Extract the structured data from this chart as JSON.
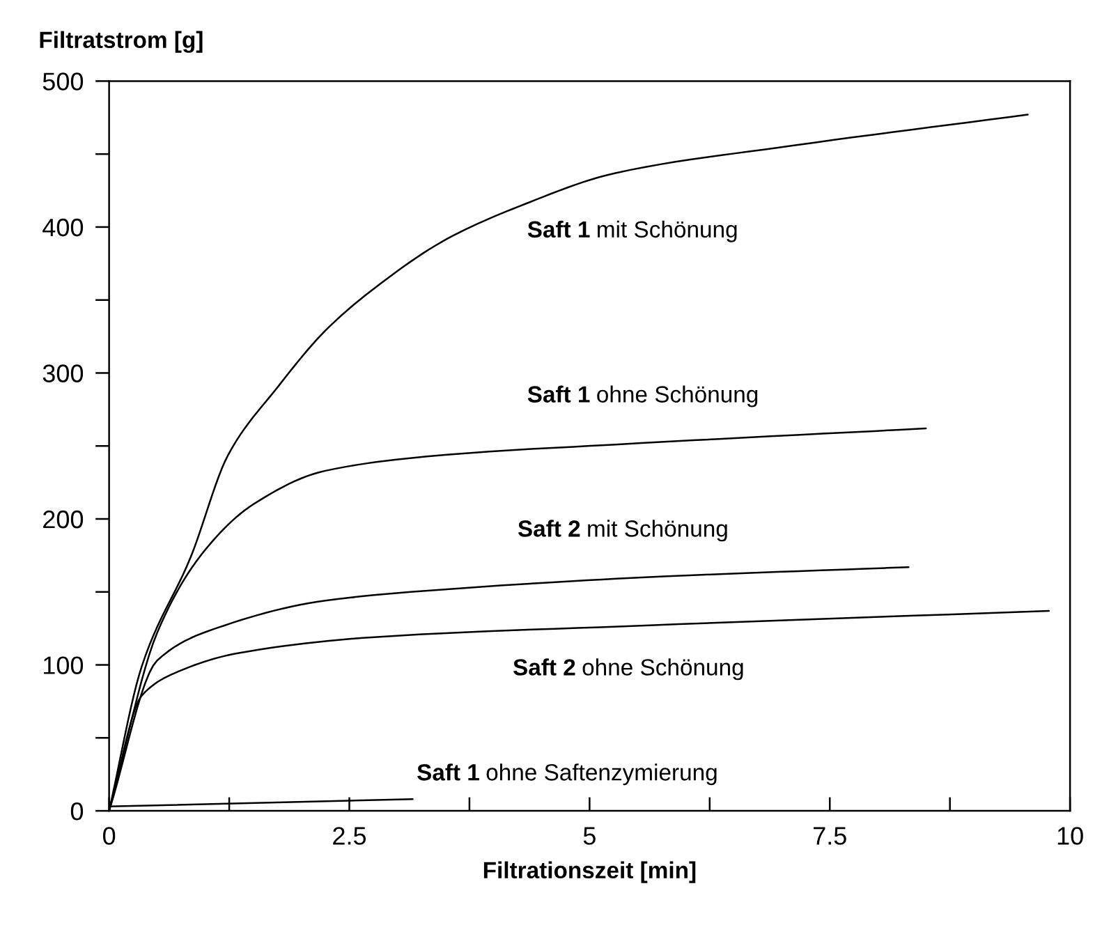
{
  "chart_data": {
    "type": "line",
    "xlabel": "Filtrationszeit [min]",
    "ylabel": "Filtratstrom [g]",
    "xlim": [
      0,
      10
    ],
    "ylim": [
      0,
      500
    ],
    "xticks": [
      0,
      {
        "value": 1.25,
        "label": null
      },
      2.5,
      {
        "value": 3.75,
        "label": null
      },
      5,
      {
        "value": 6.25,
        "label": null
      },
      7.5,
      {
        "value": 8.75,
        "label": null
      },
      10
    ],
    "yticks": [
      0,
      {
        "value": 50,
        "label": null
      },
      100,
      {
        "value": 150,
        "label": null
      },
      200,
      {
        "value": 250,
        "label": null
      },
      300,
      {
        "value": 350,
        "label": null
      },
      400,
      {
        "value": 450,
        "label": null
      },
      500
    ],
    "grid": false,
    "legend": false,
    "marker": "none",
    "line_style": "solid",
    "series": [
      {
        "name": "Saft 1 mit Schönung",
        "color": "#000000",
        "x": [
          0,
          0.34,
          0.85,
          1.24,
          1.75,
          2.25,
          2.76,
          3.52,
          4.26,
          5.27,
          7.14,
          9.56
        ],
        "values": [
          0,
          99,
          174,
          244,
          290,
          329,
          358,
          392,
          414,
          437,
          456,
          477
        ]
      },
      {
        "name": "Saft 1 ohne Schönung",
        "color": "#000000",
        "x": [
          0,
          0.5,
          0.99,
          1.5,
          2.25,
          3.52,
          5.27,
          8.5
        ],
        "values": [
          0,
          122,
          178,
          210,
          233,
          244,
          251,
          262
        ]
      },
      {
        "name": "Saft 2 mit Schönung",
        "color": "#000000",
        "x": [
          0,
          0.5,
          1.2,
          2.25,
          3.77,
          5.58,
          8.32
        ],
        "values": [
          0,
          103,
          127,
          144,
          153,
          160,
          167
        ]
      },
      {
        "name": "Saft 2 ohne Schönung",
        "color": "#000000",
        "x": [
          0,
          0.34,
          0.74,
          1.34,
          2.76,
          5.58,
          9.78
        ],
        "values": [
          0,
          79,
          96,
          108,
          119,
          127,
          137
        ]
      },
      {
        "name": "Saft 1 ohne Saftenzymierung",
        "color": "#000000",
        "x": [
          0,
          3.16
        ],
        "values": [
          3,
          8
        ]
      }
    ]
  }
}
